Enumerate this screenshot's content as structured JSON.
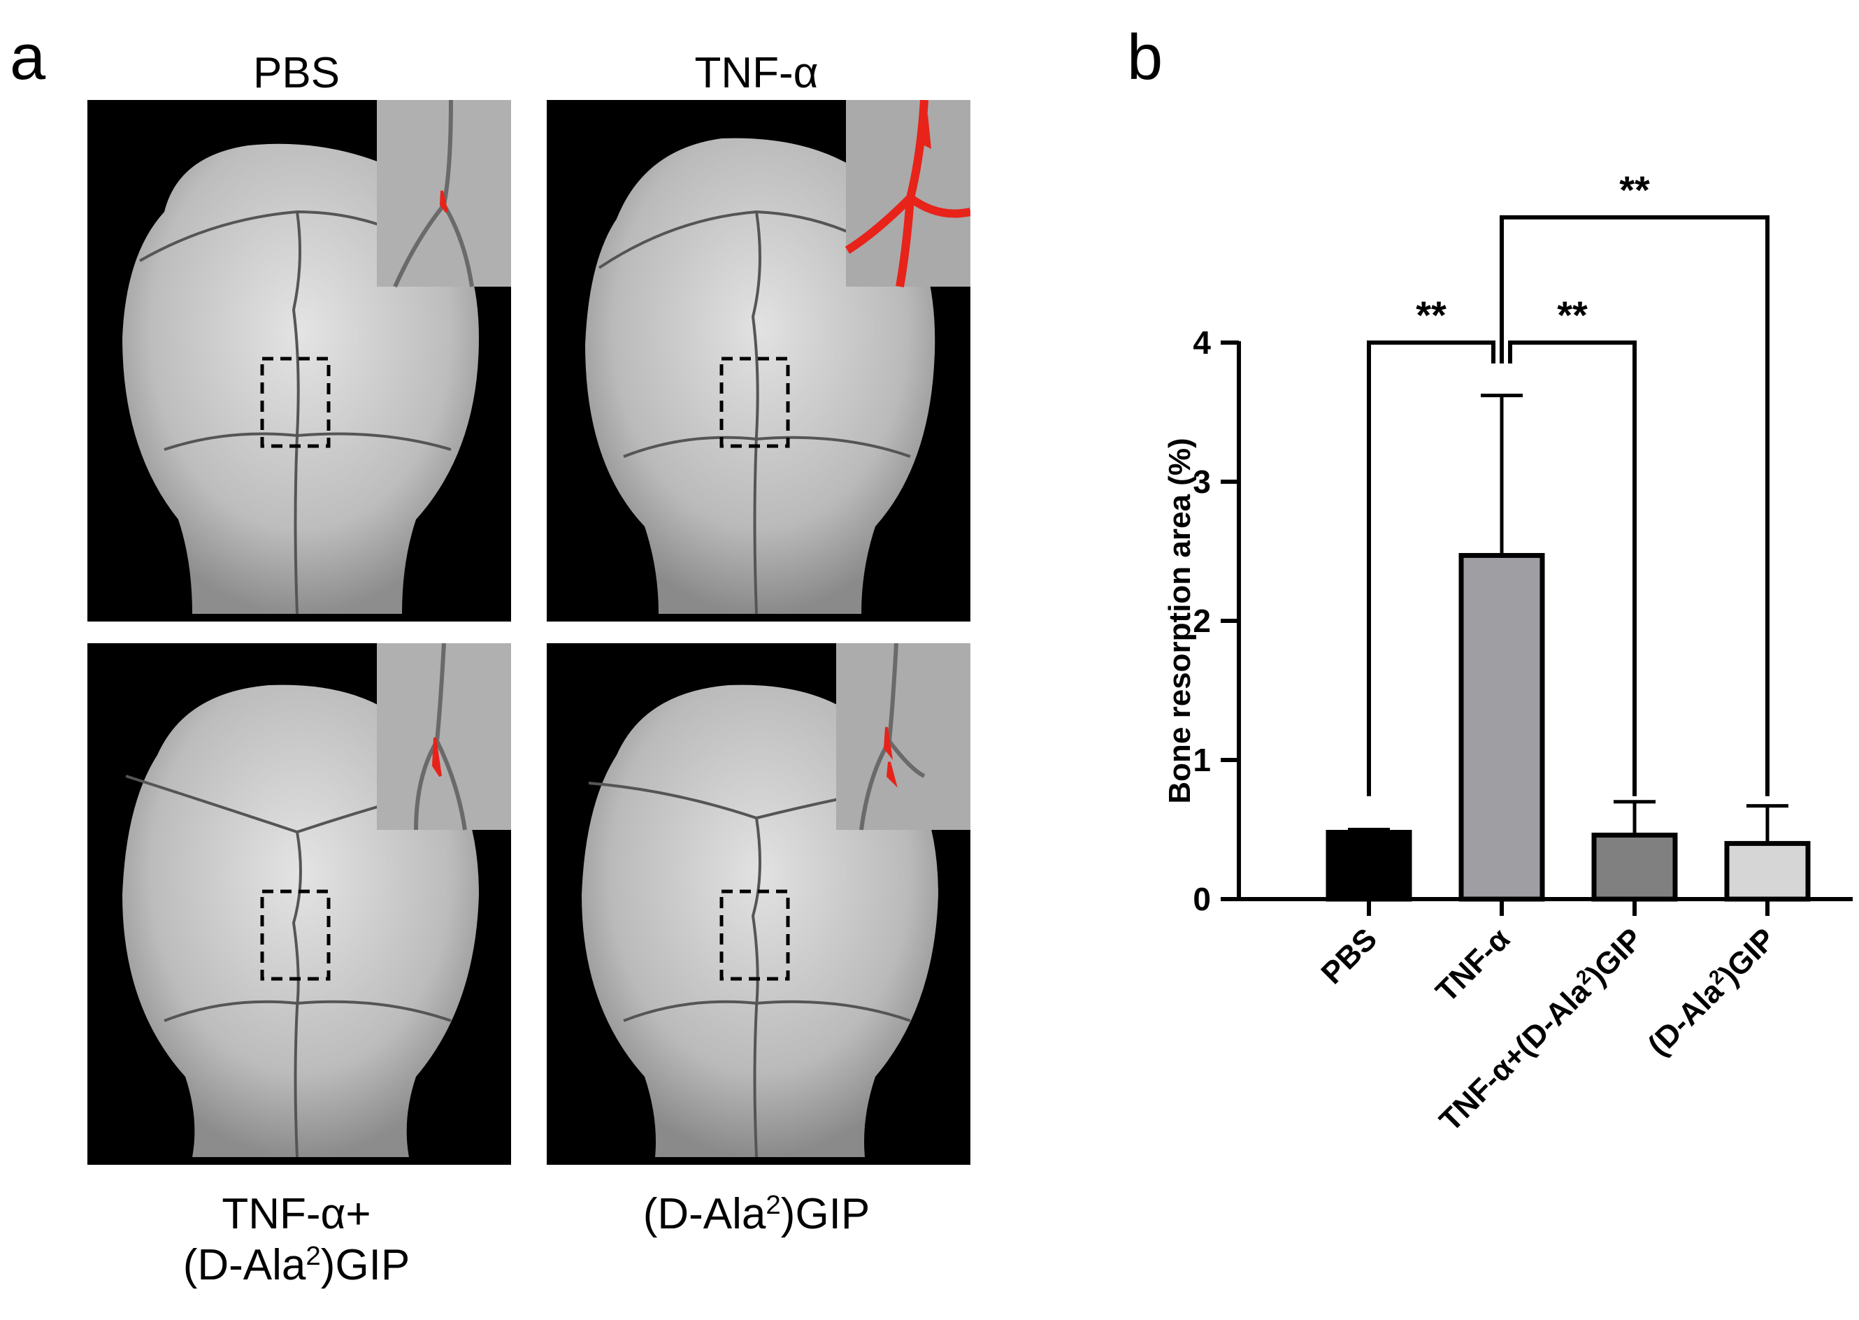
{
  "panels": {
    "a": {
      "letter": "a",
      "labels": {
        "top_left": "PBS",
        "top_right": "TNF-α",
        "bottom_left_line1": "TNF-α+",
        "bottom_left_line2_pre": "(D-Ala",
        "bottom_left_line2_sup": "2",
        "bottom_left_line2_post": ")GIP",
        "bottom_right_pre": "(D-Ala",
        "bottom_right_sup": "2",
        "bottom_right_post": ")GIP"
      }
    },
    "b": {
      "letter": "b"
    }
  },
  "colors": {
    "PBS": "#000000",
    "TNF-α": "#9e9ea3",
    "TNF-α+(D-Ala2)GIP": "#808080",
    "(D-Ala2)GIP": "#d6d6d6",
    "resorption_highlight": "#e8231a"
  },
  "chart_data": {
    "type": "bar",
    "ylabel": "Bone resorption area (%)",
    "ylim": [
      0,
      4
    ],
    "yticks": [
      "0",
      "1",
      "2",
      "3",
      "4"
    ],
    "categories": [
      {
        "pre": "PBS",
        "sup": "",
        "post": ""
      },
      {
        "pre": "TNF-α",
        "sup": "",
        "post": ""
      },
      {
        "pre": "TNF-α+(D-Ala",
        "sup": "2",
        "post": ")GIP"
      },
      {
        "pre": "(D-Ala",
        "sup": "2",
        "post": ")GIP"
      }
    ],
    "values": [
      0.48,
      2.47,
      0.46,
      0.4
    ],
    "errors": [
      0.02,
      1.15,
      0.24,
      0.27
    ],
    "significance": [
      {
        "from": 0,
        "to": 1,
        "label": "**",
        "y": 4.0
      },
      {
        "from": 1,
        "to": 2,
        "label": "**",
        "y": 4.0
      },
      {
        "from": 1,
        "to": 3,
        "label": "**",
        "y": 4.9
      }
    ]
  }
}
